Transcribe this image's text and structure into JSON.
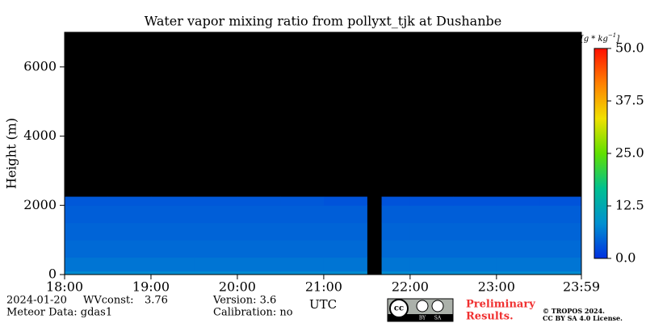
{
  "chart_data": {
    "type": "heatmap",
    "title": "Water vapor mixing ratio from pollyxt_tjk at Dushanbe",
    "y_label": "Height (m)",
    "x_label": "UTC",
    "xlim": [
      18,
      23.983
    ],
    "xticks": [
      {
        "value": 18,
        "label": "18:00"
      },
      {
        "value": 19,
        "label": "19:00"
      },
      {
        "value": 20,
        "label": "20:00"
      },
      {
        "value": 21,
        "label": "21:00"
      },
      {
        "value": 22,
        "label": "22:00"
      },
      {
        "value": 23,
        "label": "23:00"
      },
      {
        "value": 23.983,
        "label": "23:59"
      }
    ],
    "ylim": [
      0,
      7000
    ],
    "yticks": [
      0,
      2000,
      4000,
      6000
    ],
    "x_edges": [
      18,
      18.5,
      19,
      19.5,
      20,
      20.5,
      21,
      21.5,
      21.67,
      22,
      22.5,
      23,
      23.5,
      23.983
    ],
    "y_edges": [
      0,
      100,
      500,
      1000,
      1500,
      2000,
      2250
    ],
    "z": [
      [
        8,
        8,
        8,
        8,
        8,
        8,
        8,
        null,
        8,
        8,
        8,
        8,
        8
      ],
      [
        6,
        6,
        6,
        6,
        6,
        6,
        6,
        null,
        6,
        6,
        6,
        6,
        6
      ],
      [
        5,
        5,
        5,
        5,
        5,
        5,
        5,
        null,
        5,
        5,
        5,
        5,
        5
      ],
      [
        4.5,
        4.5,
        4.5,
        4.5,
        4.5,
        4.5,
        4.5,
        null,
        4.5,
        4.5,
        4.5,
        4.5,
        4.5
      ],
      [
        4,
        4,
        4,
        4,
        4,
        4,
        4,
        null,
        4,
        4,
        4,
        4,
        4
      ],
      [
        3.5,
        3.5,
        3.5,
        3.5,
        3.5,
        3.5,
        3,
        null,
        3,
        3,
        3,
        3,
        3
      ]
    ],
    "colorbar": {
      "unit": [
        "[g * kg",
        "−1",
        "]"
      ],
      "lim": [
        0,
        50
      ],
      "ticks": [
        {
          "value": 0,
          "label": "0.0"
        },
        {
          "value": 12.5,
          "label": "12.5"
        },
        {
          "value": 25,
          "label": "25.0"
        },
        {
          "value": 37.5,
          "label": "37.5"
        },
        {
          "value": 50,
          "label": "50.0"
        }
      ],
      "colors": [
        "#0030e0",
        "#0090d0",
        "#00c090",
        "#60e000",
        "#f0e000",
        "#ff8000",
        "#ff1000"
      ]
    },
    "background": "#000000"
  },
  "footer": {
    "date": "2024-01-20",
    "wvconst_label": "WVconst:",
    "wvconst": "3.76",
    "meteor": "Meteor Data: gdas1",
    "version": "Version: 3.6",
    "calibration": "Calibration: no",
    "badge": [
      "cc",
      "BY",
      "SA"
    ],
    "preliminary": [
      "Preliminary",
      "Results."
    ],
    "copyright": [
      "© TROPOS 2024.",
      "CC BY SA 4.0 License."
    ]
  }
}
